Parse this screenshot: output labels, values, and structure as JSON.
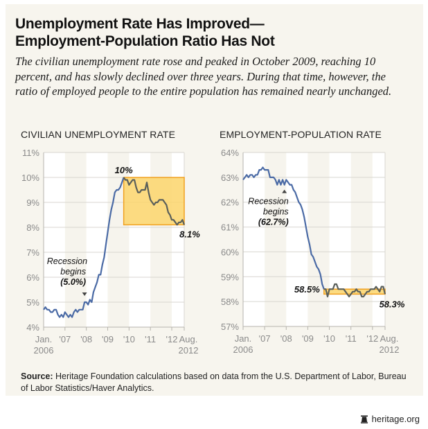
{
  "header": {
    "title_line1": "Unemployment Rate Has Improved—",
    "title_line2": "Employment-Population Ratio Has Not",
    "subtitle": "The civilian unemployment rate rose and peaked in October 2009, reaching 10 percent, and has slowly declined over three years. During that time, however, the ratio of employed people to the entire population has remained nearly unchanged."
  },
  "chart_data": [
    {
      "type": "line",
      "title": "CIVILIAN UNEMPLOYMENT RATE",
      "xlabel": "",
      "ylabel": "",
      "ylim": [
        4,
        11
      ],
      "yticks": [
        4,
        5,
        6,
        7,
        8,
        9,
        10,
        11
      ],
      "ytick_labels": [
        "4%",
        "5%",
        "6%",
        "7%",
        "8%",
        "9%",
        "10%",
        "11%"
      ],
      "xtick_labels": [
        [
          "Jan.",
          "2006"
        ],
        [
          "'07"
        ],
        [
          "'08"
        ],
        [
          "'09"
        ],
        [
          "'10"
        ],
        [
          "'11"
        ],
        [
          "'12"
        ],
        [
          "Aug.",
          "2012"
        ]
      ],
      "xtick_months": [
        0,
        12,
        24,
        36,
        48,
        60,
        72,
        79
      ],
      "x_start": "Jan. 2006",
      "x_end": "Aug. 2012",
      "grid": true,
      "line_color": "#4a6aa5",
      "highlight_line_color": "#5a5f5a",
      "highlight_fill": "#fbd56b",
      "highlight_stroke": "#f0a020",
      "highlight_box": {
        "start_month": 45,
        "end_month": 79,
        "y_low": 8.1,
        "y_high": 10.0
      },
      "annotations": [
        {
          "text_lines": [
            "Recession",
            "begins"
          ],
          "value_label": "(5.0%)",
          "month": 23,
          "value": 5.0,
          "marker": "down-triangle"
        },
        {
          "text_lines": [],
          "value_label": "10%",
          "month": 45,
          "value": 10.0
        },
        {
          "text_lines": [],
          "value_label": "8.1%",
          "month": 79,
          "value": 8.1
        }
      ],
      "series": [
        {
          "name": "Civilian unemployment rate (%)",
          "values": [
            4.7,
            4.8,
            4.7,
            4.7,
            4.6,
            4.6,
            4.7,
            4.7,
            4.5,
            4.4,
            4.5,
            4.4,
            4.6,
            4.5,
            4.4,
            4.5,
            4.4,
            4.6,
            4.7,
            4.6,
            4.7,
            4.7,
            4.7,
            5.0,
            5.0,
            4.9,
            5.1,
            5.0,
            5.4,
            5.6,
            5.8,
            6.1,
            6.1,
            6.5,
            6.8,
            7.3,
            7.8,
            8.3,
            8.7,
            9.0,
            9.4,
            9.5,
            9.5,
            9.6,
            9.8,
            10.0,
            9.9,
            9.9,
            9.7,
            9.8,
            9.9,
            9.9,
            9.6,
            9.4,
            9.4,
            9.5,
            9.5,
            9.5,
            9.8,
            9.4,
            9.1,
            9.0,
            8.9,
            9.0,
            9.0,
            9.1,
            9.1,
            9.1,
            9.0,
            8.9,
            8.6,
            8.5,
            8.3,
            8.3,
            8.2,
            8.1,
            8.2,
            8.2,
            8.3,
            8.1
          ]
        }
      ]
    },
    {
      "type": "line",
      "title": "EMPLOYMENT-POPULATION RATE",
      "xlabel": "",
      "ylabel": "",
      "ylim": [
        57,
        64
      ],
      "yticks": [
        57,
        58,
        59,
        60,
        61,
        62,
        63,
        64
      ],
      "ytick_labels": [
        "57%",
        "58%",
        "59%",
        "60%",
        "61%",
        "62%",
        "63%",
        "64%"
      ],
      "xtick_labels": [
        [
          "Jan.",
          "2006"
        ],
        [
          "'07"
        ],
        [
          "'08"
        ],
        [
          "'09"
        ],
        [
          "'10"
        ],
        [
          "'11"
        ],
        [
          "'12"
        ],
        [
          "Aug.",
          "2012"
        ]
      ],
      "xtick_months": [
        0,
        12,
        24,
        36,
        48,
        60,
        72,
        79
      ],
      "x_start": "Jan. 2006",
      "x_end": "Aug. 2012",
      "grid": true,
      "line_color": "#4a6aa5",
      "highlight_line_color": "#5a5f5a",
      "highlight_fill": "#fbd56b",
      "highlight_stroke": "#f0a020",
      "highlight_box": {
        "start_month": 45,
        "end_month": 79,
        "y_low": 58.3,
        "y_high": 58.5
      },
      "annotations": [
        {
          "text_lines": [
            "Recession",
            "begins"
          ],
          "value_label": "(62.7%)",
          "month": 23,
          "value": 62.7,
          "marker": "up-triangle"
        },
        {
          "text_lines": [],
          "value_label": "58.5%",
          "month": 45,
          "value": 58.5
        },
        {
          "text_lines": [],
          "value_label": "58.3%",
          "month": 79,
          "value": 58.3
        }
      ],
      "series": [
        {
          "name": "Employment-population ratio (%)",
          "values": [
            62.9,
            63.0,
            63.1,
            63.0,
            63.1,
            63.1,
            63.0,
            63.1,
            63.1,
            63.3,
            63.3,
            63.4,
            63.3,
            63.3,
            63.3,
            63.0,
            63.0,
            63.0,
            62.9,
            62.7,
            62.9,
            62.7,
            62.9,
            62.7,
            62.9,
            62.8,
            62.7,
            62.7,
            62.5,
            62.4,
            62.2,
            62.0,
            61.9,
            61.7,
            61.4,
            61.0,
            60.6,
            60.3,
            59.9,
            59.8,
            59.6,
            59.4,
            59.3,
            59.1,
            58.7,
            58.5,
            58.5,
            58.2,
            58.5,
            58.5,
            58.5,
            58.7,
            58.7,
            58.5,
            58.5,
            58.5,
            58.5,
            58.4,
            58.3,
            58.2,
            58.3,
            58.4,
            58.4,
            58.5,
            58.4,
            58.4,
            58.2,
            58.2,
            58.3,
            58.4,
            58.4,
            58.5,
            58.5,
            58.5,
            58.6,
            58.5,
            58.4,
            58.6,
            58.6,
            58.3
          ]
        }
      ]
    }
  ],
  "footer": {
    "source_label": "Source:",
    "source_text": " Heritage Foundation calculations based on data from the U.S. Department of Labor, Bureau of Labor Statistics/Haver Analytics.",
    "logo_text": "heritage.org"
  },
  "colors": {
    "panel_background": "#f7f5ee",
    "band_shade": "#f5f3ec",
    "grid": "#d8d6d0",
    "axis_text": "#8a8a8a"
  }
}
